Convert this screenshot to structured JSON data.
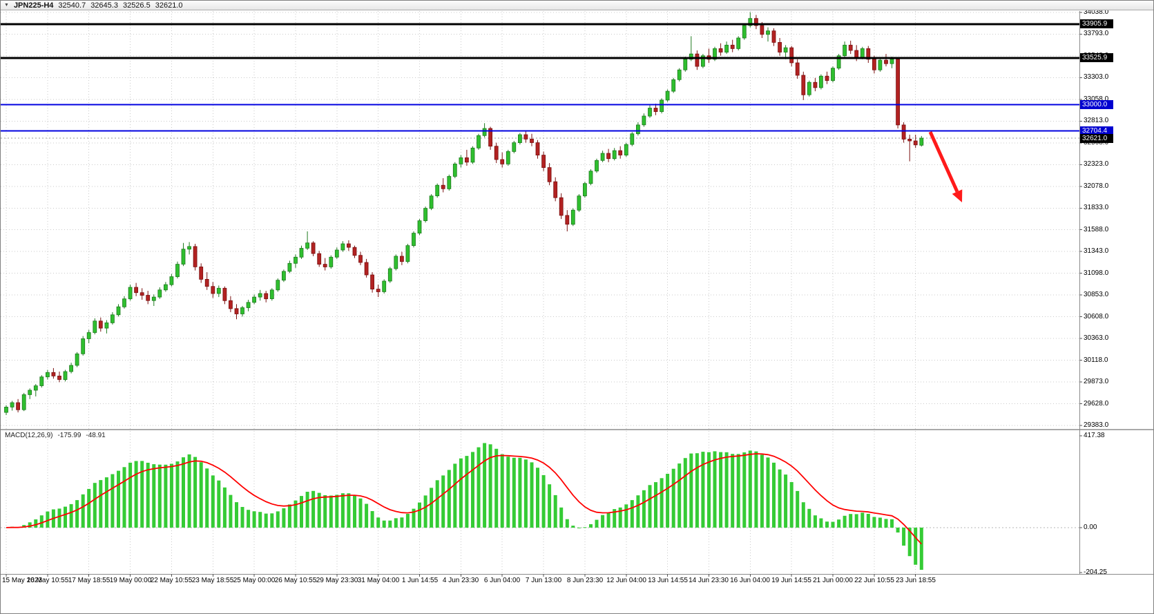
{
  "window": {
    "symbol_timeframe": "JPN225-H4",
    "dropdown_icon": "▼",
    "ohlc": {
      "open": "32540.7",
      "high": "32645.3",
      "low": "32526.5",
      "close": "32621.0"
    }
  },
  "grid_color": "#c9c9c9",
  "price_axis": {
    "badges": [
      {
        "label": "33905.9",
        "price": 33905.9,
        "bg": "#000000"
      },
      {
        "label": "33525.9",
        "price": 33525.9,
        "bg": "#000000"
      },
      {
        "label": "33000.0",
        "price": 33000.0,
        "bg": "#0000d0"
      },
      {
        "label": "32704.4",
        "price": 32704.4,
        "bg": "#0000d0"
      },
      {
        "label": "32621.0",
        "price": 32621.0,
        "bg": "#000000"
      }
    ]
  },
  "levels": [
    {
      "price": 33905.9,
      "color": "#000000",
      "width": 3
    },
    {
      "price": 33525.9,
      "color": "#000000",
      "width": 3
    },
    {
      "price": 33000.0,
      "color": "#0000e0",
      "width": 2
    },
    {
      "price": 32704.4,
      "color": "#0000e0",
      "width": 2
    }
  ],
  "current_price_line": {
    "price": 32621.0,
    "color": "#999999"
  },
  "annotation_arrow": {
    "from": [
      1346,
      190
    ],
    "to": [
      1392,
      292
    ],
    "color": "#ff1a1a"
  },
  "macd_panel": {
    "label": "MACD(12,26,9)",
    "main_value": "-175.99",
    "signal_value": "-48.91",
    "axis_ticks": [
      "417.38",
      "0.00",
      "-204.25"
    ],
    "range": [
      417.38,
      -204.25
    ],
    "params": {
      "fast": 12,
      "slow": 26,
      "signal": 9
    },
    "histogram_color": "#35cb35",
    "signal_color": "#ff0000"
  },
  "chart_data": {
    "type": "candlestick",
    "title": "JPN225-H4",
    "symbol": "JPN225",
    "timeframe": "H4",
    "y_axis": {
      "max": 34038,
      "min": 29383,
      "ticks": [
        "34038.0",
        "33793.0",
        "33548.0",
        "33303.0",
        "33058.0",
        "32813.0",
        "32568.0",
        "32323.0",
        "32078.0",
        "31833.0",
        "31588.0",
        "31343.0",
        "31098.0",
        "30853.0",
        "30608.0",
        "30363.0",
        "30118.0",
        "29873.0",
        "29628.0",
        "29383.0"
      ]
    },
    "x_labels": [
      "15 May 2023",
      "16 May 10:55",
      "17 May 18:55",
      "19 May 00:00",
      "22 May 10:55",
      "23 May 18:55",
      "25 May 00:00",
      "26 May 10:55",
      "29 May 23:30",
      "31 May 04:00",
      "1 Jun 14:55",
      "4 Jun 23:30",
      "6 Jun 04:00",
      "7 Jun 13:00",
      "8 Jun 23:30",
      "12 Jun 04:00",
      "13 Jun 14:55",
      "14 Jun 23:30",
      "16 Jun 04:00",
      "19 Jun 14:55",
      "21 Jun 00:00",
      "22 Jun 10:55",
      "23 Jun 18:55"
    ],
    "candles_per_x_tick": 7,
    "bull_color": "#2fbf2f",
    "bull_edge": "#1e7a1e",
    "bear_color": "#b22222",
    "bear_edge": "#7a1010",
    "candles": [
      [
        29530,
        29610,
        29500,
        29590
      ],
      [
        29590,
        29660,
        29550,
        29640
      ],
      [
        29640,
        29680,
        29530,
        29560
      ],
      [
        29560,
        29750,
        29545,
        29730
      ],
      [
        29730,
        29800,
        29680,
        29780
      ],
      [
        29780,
        29850,
        29710,
        29830
      ],
      [
        29830,
        29950,
        29810,
        29930
      ],
      [
        29930,
        30010,
        29900,
        29980
      ],
      [
        29980,
        30030,
        29910,
        29940
      ],
      [
        29940,
        29990,
        29870,
        29900
      ],
      [
        29900,
        30010,
        29880,
        29990
      ],
      [
        29990,
        30090,
        29970,
        30060
      ],
      [
        30060,
        30210,
        30040,
        30190
      ],
      [
        30190,
        30390,
        30170,
        30360
      ],
      [
        30360,
        30460,
        30310,
        30430
      ],
      [
        30430,
        30590,
        30410,
        30560
      ],
      [
        30560,
        30600,
        30440,
        30480
      ],
      [
        30480,
        30570,
        30420,
        30540
      ],
      [
        30540,
        30660,
        30520,
        30630
      ],
      [
        30630,
        30750,
        30610,
        30720
      ],
      [
        30720,
        30840,
        30700,
        30810
      ],
      [
        30810,
        30970,
        30790,
        30940
      ],
      [
        30940,
        30990,
        30840,
        30880
      ],
      [
        30880,
        30930,
        30800,
        30850
      ],
      [
        30850,
        30900,
        30750,
        30790
      ],
      [
        30790,
        30860,
        30730,
        30830
      ],
      [
        30830,
        30940,
        30810,
        30910
      ],
      [
        30910,
        31000,
        30890,
        30970
      ],
      [
        30970,
        31090,
        30950,
        31060
      ],
      [
        31060,
        31230,
        31040,
        31200
      ],
      [
        31200,
        31440,
        31180,
        31370
      ],
      [
        31370,
        31450,
        31310,
        31400
      ],
      [
        31400,
        31430,
        31130,
        31170
      ],
      [
        31170,
        31210,
        30990,
        31030
      ],
      [
        31030,
        31110,
        30910,
        30950
      ],
      [
        30950,
        31000,
        30820,
        30870
      ],
      [
        30870,
        30960,
        30830,
        30930
      ],
      [
        30930,
        30950,
        30750,
        30790
      ],
      [
        30790,
        30840,
        30660,
        30700
      ],
      [
        30700,
        30750,
        30580,
        30640
      ],
      [
        30640,
        30730,
        30610,
        30710
      ],
      [
        30710,
        30800,
        30670,
        30770
      ],
      [
        30770,
        30860,
        30750,
        30830
      ],
      [
        30830,
        30910,
        30790,
        30870
      ],
      [
        30870,
        30900,
        30770,
        30810
      ],
      [
        30810,
        30930,
        30790,
        30910
      ],
      [
        30910,
        31040,
        30890,
        31020
      ],
      [
        31020,
        31140,
        31000,
        31120
      ],
      [
        31120,
        31240,
        31100,
        31210
      ],
      [
        31210,
        31310,
        31160,
        31280
      ],
      [
        31280,
        31410,
        31260,
        31380
      ],
      [
        31380,
        31570,
        31360,
        31440
      ],
      [
        31440,
        31460,
        31290,
        31320
      ],
      [
        31320,
        31350,
        31170,
        31200
      ],
      [
        31200,
        31270,
        31130,
        31170
      ],
      [
        31170,
        31300,
        31150,
        31280
      ],
      [
        31280,
        31390,
        31260,
        31360
      ],
      [
        31360,
        31460,
        31340,
        31430
      ],
      [
        31430,
        31470,
        31350,
        31390
      ],
      [
        31390,
        31410,
        31270,
        31300
      ],
      [
        31300,
        31340,
        31190,
        31220
      ],
      [
        31220,
        31260,
        31050,
        31080
      ],
      [
        31080,
        31110,
        30880,
        30920
      ],
      [
        30920,
        30970,
        30830,
        30890
      ],
      [
        30890,
        31030,
        30870,
        31010
      ],
      [
        31010,
        31170,
        30990,
        31150
      ],
      [
        31150,
        31310,
        31130,
        31290
      ],
      [
        31290,
        31340,
        31190,
        31230
      ],
      [
        31230,
        31430,
        31210,
        31410
      ],
      [
        31410,
        31570,
        31390,
        31550
      ],
      [
        31550,
        31710,
        31530,
        31690
      ],
      [
        31690,
        31850,
        31670,
        31830
      ],
      [
        31830,
        31990,
        31810,
        31970
      ],
      [
        31970,
        32110,
        31950,
        32090
      ],
      [
        32090,
        32170,
        32010,
        32050
      ],
      [
        32050,
        32210,
        32030,
        32190
      ],
      [
        32190,
        32350,
        32170,
        32330
      ],
      [
        32330,
        32430,
        32290,
        32400
      ],
      [
        32400,
        32490,
        32310,
        32350
      ],
      [
        32350,
        32530,
        32330,
        32510
      ],
      [
        32510,
        32670,
        32490,
        32650
      ],
      [
        32650,
        32790,
        32630,
        32730
      ],
      [
        32730,
        32750,
        32490,
        32530
      ],
      [
        32530,
        32570,
        32340,
        32380
      ],
      [
        32380,
        32460,
        32290,
        32330
      ],
      [
        32330,
        32490,
        32310,
        32470
      ],
      [
        32470,
        32590,
        32450,
        32570
      ],
      [
        32570,
        32680,
        32550,
        32660
      ],
      [
        32660,
        32710,
        32570,
        32610
      ],
      [
        32610,
        32670,
        32530,
        32570
      ],
      [
        32570,
        32600,
        32390,
        32430
      ],
      [
        32430,
        32470,
        32250,
        32290
      ],
      [
        32290,
        32340,
        32090,
        32130
      ],
      [
        32130,
        32180,
        31910,
        31950
      ],
      [
        31950,
        32000,
        31710,
        31750
      ],
      [
        31750,
        31810,
        31570,
        31650
      ],
      [
        31650,
        31830,
        31630,
        31810
      ],
      [
        31810,
        31990,
        31790,
        31970
      ],
      [
        31970,
        32130,
        31950,
        32110
      ],
      [
        32110,
        32270,
        32090,
        32250
      ],
      [
        32250,
        32390,
        32230,
        32370
      ],
      [
        32370,
        32480,
        32350,
        32450
      ],
      [
        32450,
        32500,
        32350,
        32390
      ],
      [
        32390,
        32510,
        32370,
        32480
      ],
      [
        32480,
        32530,
        32390,
        32430
      ],
      [
        32430,
        32570,
        32410,
        32550
      ],
      [
        32550,
        32690,
        32530,
        32670
      ],
      [
        32670,
        32800,
        32650,
        32770
      ],
      [
        32770,
        32900,
        32750,
        32870
      ],
      [
        32870,
        32990,
        32850,
        32960
      ],
      [
        32960,
        33010,
        32880,
        32920
      ],
      [
        32920,
        33070,
        32900,
        33050
      ],
      [
        33050,
        33170,
        33030,
        33150
      ],
      [
        33150,
        33300,
        33130,
        33280
      ],
      [
        33280,
        33410,
        33260,
        33390
      ],
      [
        33390,
        33540,
        33370,
        33510
      ],
      [
        33510,
        33770,
        33490,
        33570
      ],
      [
        33570,
        33610,
        33390,
        33430
      ],
      [
        33430,
        33570,
        33410,
        33550
      ],
      [
        33550,
        33630,
        33470,
        33510
      ],
      [
        33510,
        33650,
        33490,
        33630
      ],
      [
        33630,
        33690,
        33550,
        33590
      ],
      [
        33590,
        33710,
        33570,
        33670
      ],
      [
        33670,
        33730,
        33590,
        33630
      ],
      [
        33630,
        33770,
        33610,
        33750
      ],
      [
        33750,
        33910,
        33730,
        33890
      ],
      [
        33890,
        34040,
        33870,
        33970
      ],
      [
        33970,
        34010,
        33850,
        33890
      ],
      [
        33890,
        33930,
        33750,
        33790
      ],
      [
        33790,
        33870,
        33710,
        33830
      ],
      [
        33830,
        33860,
        33660,
        33700
      ],
      [
        33700,
        33750,
        33550,
        33590
      ],
      [
        33590,
        33670,
        33510,
        33640
      ],
      [
        33640,
        33660,
        33430,
        33470
      ],
      [
        33470,
        33510,
        33290,
        33330
      ],
      [
        33330,
        33370,
        33050,
        33110
      ],
      [
        33110,
        33270,
        33090,
        33250
      ],
      [
        33250,
        33300,
        33150,
        33190
      ],
      [
        33190,
        33340,
        33170,
        33320
      ],
      [
        33320,
        33370,
        33230,
        33270
      ],
      [
        33270,
        33430,
        33250,
        33410
      ],
      [
        33410,
        33570,
        33390,
        33550
      ],
      [
        33550,
        33710,
        33530,
        33670
      ],
      [
        33670,
        33720,
        33570,
        33610
      ],
      [
        33610,
        33670,
        33490,
        33530
      ],
      [
        33530,
        33650,
        33510,
        33630
      ],
      [
        33630,
        33660,
        33470,
        33510
      ],
      [
        33510,
        33550,
        33350,
        33390
      ],
      [
        33390,
        33530,
        33370,
        33500
      ],
      [
        33500,
        33570,
        33430,
        33460
      ],
      [
        33460,
        33540,
        33410,
        33510
      ],
      [
        33510,
        33530,
        32730,
        32770
      ],
      [
        32770,
        32800,
        32570,
        32610
      ],
      [
        32610,
        32660,
        32360,
        32590
      ],
      [
        32590,
        32660,
        32510,
        32545
      ],
      [
        32540.7,
        32645.3,
        32526.5,
        32621.0
      ]
    ]
  }
}
